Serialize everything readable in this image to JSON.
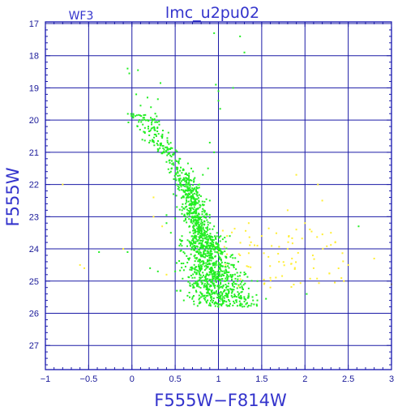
{
  "colors": {
    "frame": "#0000aa",
    "grid": "#1a1aa6",
    "main_points": "#22ee22",
    "secondary_points": "#ffee33",
    "text": "#3333cc"
  },
  "chart_data": {
    "type": "scatter",
    "title": "lmc_u2pu02",
    "chip_label": "WF3",
    "xlabel": "F555W−F814W",
    "ylabel": "F555W",
    "xlim": [
      -1,
      3
    ],
    "ylim": [
      27.75,
      16.95
    ],
    "y_inverted": true,
    "grid": true,
    "x_ticks": [
      -1,
      -0.5,
      0,
      0.5,
      1,
      1.5,
      2,
      2.5,
      3
    ],
    "x_tick_labels": [
      "−1",
      "−0.5",
      "0",
      "0.5",
      "1",
      "1.5",
      "2",
      "2.5",
      "3"
    ],
    "y_ticks": [
      17,
      18,
      19,
      20,
      21,
      22,
      23,
      24,
      25,
      26,
      27
    ],
    "y_tick_labels": [
      "17",
      "18",
      "19",
      "20",
      "21",
      "22",
      "23",
      "24",
      "25",
      "26",
      "27"
    ],
    "series": [
      {
        "color": "#22ee22",
        "points": [
          [
            0.95,
            17.3
          ],
          [
            1.25,
            17.4
          ],
          [
            1.3,
            17.9
          ],
          [
            -0.05,
            18.4
          ],
          [
            -0.03,
            18.55
          ],
          [
            0.07,
            18.45
          ],
          [
            0.33,
            18.85
          ],
          [
            0.97,
            18.9
          ],
          [
            1.0,
            19.1
          ],
          [
            1.17,
            19.0
          ],
          [
            0.05,
            19.2
          ],
          [
            0.18,
            19.3
          ],
          [
            0.3,
            19.35
          ],
          [
            1.0,
            19.4
          ],
          [
            1.02,
            19.65
          ],
          [
            0.1,
            19.55
          ],
          [
            0.22,
            19.6
          ],
          [
            0.27,
            19.8
          ],
          [
            0.12,
            20.0
          ],
          [
            0.19,
            20.2
          ],
          [
            0.15,
            20.4
          ],
          [
            0.26,
            20.3
          ],
          [
            0.2,
            20.7
          ],
          [
            0.3,
            20.9
          ],
          [
            0.36,
            21.0
          ],
          [
            0.4,
            21.3
          ],
          [
            0.45,
            21.6
          ],
          [
            0.9,
            20.7
          ],
          [
            0.95,
            21.0
          ],
          [
            0.88,
            21.5
          ],
          [
            0.55,
            21.2
          ],
          [
            0.6,
            21.8
          ],
          [
            0.65,
            22.0
          ],
          [
            0.6,
            22.4
          ],
          [
            0.68,
            22.6
          ],
          [
            0.7,
            22.9
          ],
          [
            0.73,
            23.2
          ],
          [
            0.78,
            23.5
          ],
          [
            0.85,
            23.8
          ],
          [
            0.9,
            24.2
          ],
          [
            1.0,
            24.5
          ],
          [
            1.1,
            24.8
          ],
          [
            1.25,
            25.2
          ],
          [
            1.35,
            25.4
          ],
          [
            1.45,
            25.6
          ],
          [
            1.0,
            25.8
          ],
          [
            0.6,
            25.6
          ],
          [
            0.52,
            25.3
          ],
          [
            0.7,
            24.9
          ],
          [
            0.5,
            24.7
          ],
          [
            0.65,
            24.3
          ],
          [
            0.55,
            23.9
          ],
          [
            0.45,
            23.5
          ],
          [
            0.4,
            23.2
          ],
          [
            0.52,
            22.7
          ],
          [
            0.48,
            22.3
          ],
          [
            0.78,
            22.0
          ],
          [
            0.82,
            21.7
          ],
          [
            0.9,
            22.5
          ],
          [
            0.95,
            23.3
          ],
          [
            1.05,
            23.7
          ],
          [
            1.15,
            24.2
          ],
          [
            1.3,
            24.8
          ],
          [
            0.3,
            24.7
          ],
          [
            0.21,
            24.6
          ],
          [
            -0.05,
            24.1
          ],
          [
            -0.38,
            24.1
          ],
          [
            1.45,
            25.0
          ],
          [
            1.2,
            25.6
          ],
          [
            0.88,
            25.3
          ],
          [
            0.72,
            25.2
          ],
          [
            0.8,
            24.6
          ],
          [
            0.92,
            24.0
          ],
          [
            0.62,
            23.1
          ],
          [
            0.58,
            22.8
          ],
          [
            1.0,
            24.0
          ],
          [
            1.08,
            25.0
          ],
          [
            0.75,
            24.1
          ],
          [
            0.85,
            25.0
          ],
          [
            1.18,
            24.5
          ],
          [
            1.4,
            25.6
          ],
          [
            2.02,
            25.4
          ],
          [
            2.62,
            23.3
          ],
          [
            1.55,
            25.55
          ],
          [
            0.62,
            24.55
          ],
          [
            0.95,
            24.75
          ],
          [
            0.68,
            23.85
          ],
          [
            0.5,
            23.05
          ],
          [
            1.1,
            25.45
          ],
          [
            1.22,
            25.0
          ],
          [
            0.4,
            22.95
          ]
        ]
      },
      {
        "color": "#ffee33",
        "points": [
          [
            -0.8,
            22.0
          ],
          [
            -0.6,
            24.5
          ],
          [
            -0.1,
            24.0
          ],
          [
            -0.55,
            24.6
          ],
          [
            0.25,
            22.4
          ],
          [
            0.25,
            23.0
          ],
          [
            0.35,
            23.3
          ],
          [
            0.4,
            24.8
          ],
          [
            1.5,
            23.6
          ],
          [
            1.8,
            24.0
          ],
          [
            1.9,
            21.7
          ],
          [
            1.8,
            22.8
          ],
          [
            2.0,
            23.2
          ],
          [
            2.2,
            22.5
          ],
          [
            2.35,
            23.8
          ],
          [
            2.5,
            24.5
          ],
          [
            2.8,
            24.3
          ],
          [
            3.0,
            25.1
          ],
          [
            1.7,
            24.4
          ],
          [
            1.6,
            24.9
          ],
          [
            1.35,
            23.2
          ],
          [
            1.1,
            23.6
          ],
          [
            1.45,
            23.9
          ],
          [
            1.25,
            24.2
          ],
          [
            0.95,
            23.9
          ],
          [
            1.0,
            24.1
          ],
          [
            2.1,
            24.6
          ],
          [
            2.45,
            25.0
          ],
          [
            1.85,
            24.3
          ],
          [
            1.6,
            25.2
          ],
          [
            0.75,
            24.3
          ],
          [
            2.3,
            23.5
          ],
          [
            1.9,
            23.4
          ],
          [
            2.15,
            22.0
          ]
        ]
      }
    ]
  }
}
